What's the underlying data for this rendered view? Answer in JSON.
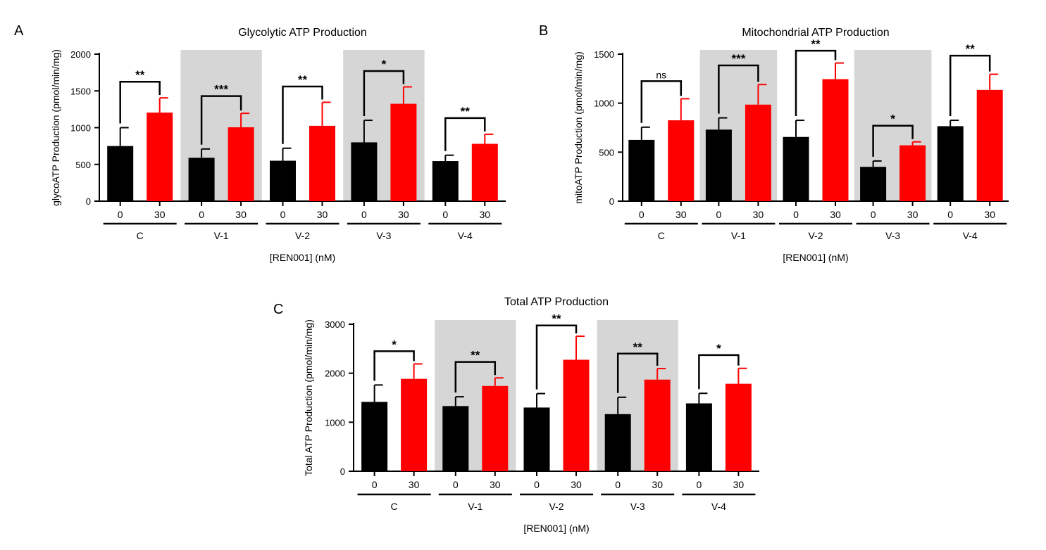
{
  "chart_data": [
    {
      "type": "bar",
      "panel_label": "A",
      "title": "Glycolytic ATP Production",
      "ylabel": "glycoATP Production (pmol/min/mg)",
      "xlabel": "[REN001] (nM)",
      "ylim": [
        0,
        2000
      ],
      "yticks": [
        0,
        500,
        1000,
        1500,
        2000
      ],
      "groups": [
        "C",
        "V-1",
        "V-2",
        "V-3",
        "V-4"
      ],
      "shaded_groups": [
        "V-1",
        "V-3"
      ],
      "dose_labels": [
        "0",
        "30"
      ],
      "series": [
        {
          "name": "0",
          "color": "#000000",
          "values": [
            750,
            590,
            550,
            800,
            545
          ],
          "errors": [
            250,
            120,
            170,
            300,
            80
          ]
        },
        {
          "name": "30",
          "color": "#ff0000",
          "values": [
            1205,
            1005,
            1025,
            1325,
            780
          ],
          "errors": [
            200,
            190,
            320,
            230,
            130
          ]
        }
      ],
      "significance": [
        {
          "group": "C",
          "label": "**",
          "y": 1625
        },
        {
          "group": "V-1",
          "label": "***",
          "y": 1430
        },
        {
          "group": "V-2",
          "label": "**",
          "y": 1560
        },
        {
          "group": "V-3",
          "label": "*",
          "y": 1770
        },
        {
          "group": "V-4",
          "label": "**",
          "y": 1130
        }
      ]
    },
    {
      "type": "bar",
      "panel_label": "B",
      "title": "Mitochondrial ATP Production",
      "ylabel": "mitoATP Production (pmol/min/mg)",
      "xlabel": "[REN001] (nM)",
      "ylim": [
        0,
        1500
      ],
      "yticks": [
        0,
        500,
        1000,
        1500
      ],
      "groups": [
        "C",
        "V-1",
        "V-2",
        "V-3",
        "V-4"
      ],
      "shaded_groups": [
        "V-1",
        "V-3"
      ],
      "dose_labels": [
        "0",
        "30"
      ],
      "series": [
        {
          "name": "0",
          "color": "#000000",
          "values": [
            625,
            730,
            655,
            350,
            765
          ],
          "errors": [
            130,
            120,
            170,
            60,
            60
          ]
        },
        {
          "name": "30",
          "color": "#ff0000",
          "values": [
            825,
            985,
            1245,
            570,
            1135
          ],
          "errors": [
            220,
            205,
            165,
            35,
            160
          ]
        }
      ],
      "significance": [
        {
          "group": "C",
          "label": "ns",
          "y": 1225
        },
        {
          "group": "V-1",
          "label": "***",
          "y": 1385
        },
        {
          "group": "V-2",
          "label": "**",
          "y": 1535
        },
        {
          "group": "V-3",
          "label": "*",
          "y": 770
        },
        {
          "group": "V-4",
          "label": "**",
          "y": 1485
        }
      ]
    },
    {
      "type": "bar",
      "panel_label": "C",
      "title": "Total ATP Production",
      "ylabel": "Total ATP Production (pmol/min/mg)",
      "xlabel": "[REN001] (nM)",
      "ylim": [
        0,
        3000
      ],
      "yticks": [
        0,
        1000,
        2000,
        3000
      ],
      "groups": [
        "C",
        "V-1",
        "V-2",
        "V-3",
        "V-4"
      ],
      "shaded_groups": [
        "V-1",
        "V-3"
      ],
      "dose_labels": [
        "0",
        "30"
      ],
      "series": [
        {
          "name": "0",
          "color": "#000000",
          "values": [
            1415,
            1330,
            1300,
            1165,
            1385
          ],
          "errors": [
            345,
            190,
            285,
            345,
            205
          ]
        },
        {
          "name": "30",
          "color": "#ff0000",
          "values": [
            1885,
            1740,
            2275,
            1870,
            1785
          ],
          "errors": [
            305,
            165,
            480,
            225,
            315
          ]
        }
      ],
      "significance": [
        {
          "group": "C",
          "label": "*",
          "y": 2450
        },
        {
          "group": "V-1",
          "label": "**",
          "y": 2230
        },
        {
          "group": "V-2",
          "label": "**",
          "y": 2975
        },
        {
          "group": "V-3",
          "label": "**",
          "y": 2400
        },
        {
          "group": "V-4",
          "label": "*",
          "y": 2370
        }
      ]
    }
  ]
}
